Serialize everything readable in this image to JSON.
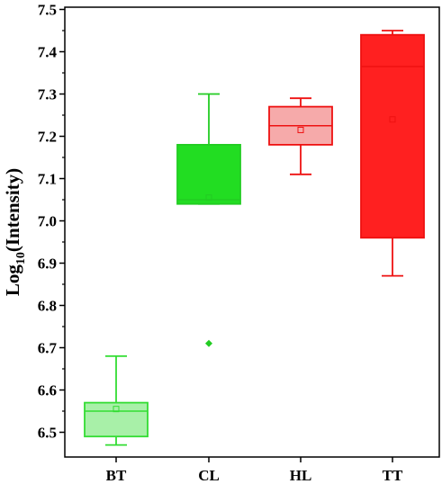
{
  "chart_data": {
    "type": "box",
    "ylabel_main": "Log",
    "ylabel_sub": "10",
    "ylabel_rest": "(Intensity)",
    "ylim": [
      6.47,
      7.5
    ],
    "yticks": [
      "6.5",
      "6.6",
      "6.7",
      "6.8",
      "6.9",
      "7.0",
      "7.1",
      "7.2",
      "7.3",
      "7.4",
      "7.5"
    ],
    "ytick_values": [
      6.5,
      6.6,
      6.7,
      6.8,
      6.9,
      7.0,
      7.1,
      7.2,
      7.3,
      7.4,
      7.5
    ],
    "grid": false,
    "categories": [
      "BT",
      "CL",
      "HL",
      "TT"
    ],
    "boxes": [
      {
        "category": "BT",
        "whisker_low": 6.47,
        "q1": 6.49,
        "median": 6.55,
        "q3": 6.57,
        "whisker_high": 6.68,
        "mean": 6.555,
        "outliers": [],
        "stroke": "#33dd33",
        "fill": "#a8f0a8"
      },
      {
        "category": "CL",
        "whisker_low": 7.04,
        "q1": 7.04,
        "median": 7.05,
        "q3": 7.18,
        "whisker_high": 7.3,
        "mean": 7.055,
        "outliers": [
          6.71
        ],
        "stroke": "#22cc22",
        "fill": "#22dd22"
      },
      {
        "category": "HL",
        "whisker_low": 7.11,
        "q1": 7.18,
        "median": 7.225,
        "q3": 7.27,
        "whisker_high": 7.29,
        "mean": 7.215,
        "outliers": [],
        "stroke": "#ee1111",
        "fill": "#f6aaaa"
      },
      {
        "category": "TT",
        "whisker_low": 6.87,
        "q1": 6.96,
        "median": 7.365,
        "q3": 7.44,
        "whisker_high": 7.45,
        "mean": 7.24,
        "outliers": [],
        "stroke": "#ee1111",
        "fill": "#ff2020"
      }
    ]
  }
}
